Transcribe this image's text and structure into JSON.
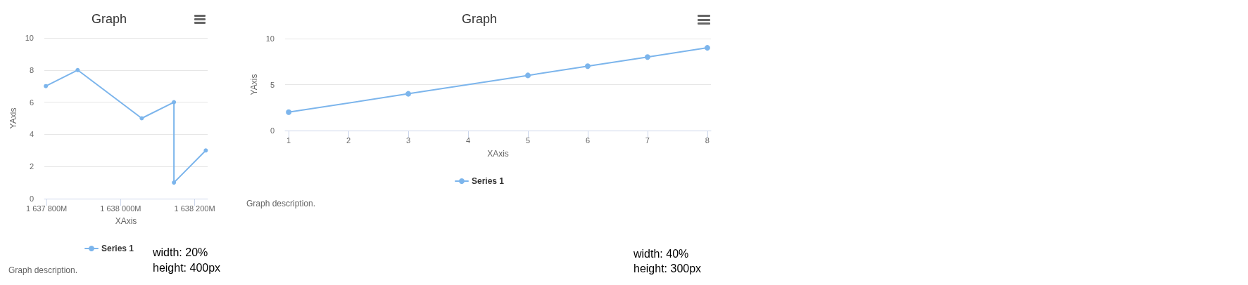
{
  "chart_data": [
    {
      "type": "line",
      "title": "Graph",
      "xlabel": "XAxis",
      "ylabel": "YAxis",
      "x": [
        1637798,
        1637884,
        1638057,
        1638144,
        1638144,
        1638230
      ],
      "series": [
        {
          "name": "Series 1",
          "color": "#7cb5ec",
          "values": [
            7,
            8,
            5,
            6,
            1,
            3
          ]
        }
      ],
      "xlim": [
        1637794,
        1638235
      ],
      "xticks": [
        {
          "value": 1637800,
          "label": "1 637 800M"
        },
        {
          "value": 1638000,
          "label": "1 638 000M"
        },
        {
          "value": 1638200,
          "label": "1 638 200M"
        }
      ],
      "ylim": [
        0,
        10
      ],
      "yticks": [
        0,
        2,
        4,
        6,
        8,
        10
      ],
      "grid": "y",
      "legend": "bottom",
      "marker": "circle",
      "annotations": [
        "Graph description.",
        "width: 20%",
        "height: 400px"
      ]
    },
    {
      "type": "line",
      "title": "Graph",
      "xlabel": "XAxis",
      "ylabel": "YAxis",
      "x": [
        1,
        3,
        5,
        6,
        7,
        8
      ],
      "series": [
        {
          "name": "Series 1",
          "color": "#7cb5ec",
          "values": [
            2,
            4,
            6,
            7,
            8,
            9
          ]
        }
      ],
      "xlim": [
        0.94,
        8.06
      ],
      "xticks": [
        1,
        2,
        3,
        4,
        5,
        6,
        7,
        8
      ],
      "ylim": [
        0,
        10
      ],
      "yticks": [
        0,
        5,
        10
      ],
      "grid": "y",
      "legend": "bottom",
      "marker": "circle",
      "annotations": [
        "Graph description.",
        "width: 40%",
        "height: 300px"
      ]
    }
  ]
}
